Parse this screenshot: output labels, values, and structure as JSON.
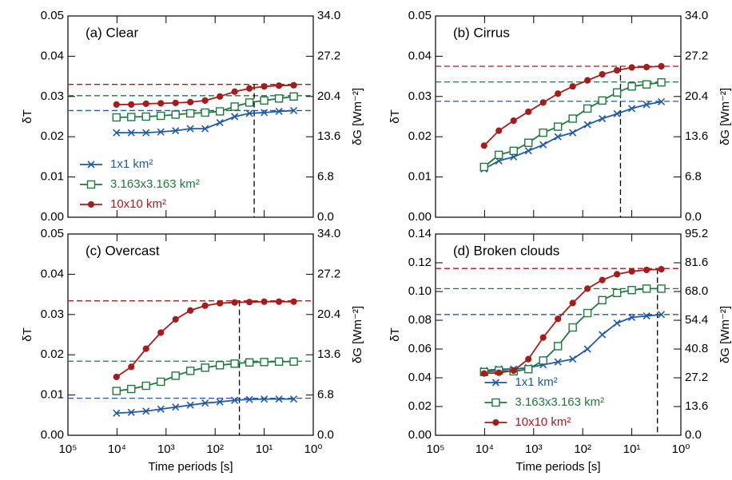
{
  "chart_data": [
    {
      "type": "line",
      "title": "(a) Clear",
      "ylabel": "δT",
      "y2label": "δG [Wm⁻²]",
      "xlog": true,
      "xlim": [
        100000,
        1
      ],
      "xticks": [
        100000,
        10000,
        1000,
        100,
        10,
        1
      ],
      "ylim": [
        0,
        0.05
      ],
      "yticks": [
        {
          "value": 0,
          "label": "0.00"
        },
        {
          "value": 0.01,
          "label": "0.01"
        },
        {
          "value": 0.02,
          "label": "0.02"
        },
        {
          "value": 0.03,
          "label": "0.03"
        },
        {
          "value": 0.04,
          "label": "0.04"
        },
        {
          "value": 0.05,
          "label": "0.05"
        }
      ],
      "y2lim": [
        0,
        34
      ],
      "y2ticks": [
        {
          "value": 0,
          "label": "0.0"
        },
        {
          "value": 6.8,
          "label": "6.8"
        },
        {
          "value": 13.6,
          "label": "13.6"
        },
        {
          "value": 20.4,
          "label": "20.4"
        },
        {
          "value": 27.2,
          "label": "27.2"
        },
        {
          "value": 34,
          "label": "34.0"
        }
      ],
      "x": [
        10240,
        5120,
        2560,
        1280,
        640,
        320,
        160,
        80,
        40,
        20,
        10,
        5,
        2.5
      ],
      "vline": 16,
      "legend": "lower left",
      "series": [
        {
          "name": "1x1 km²",
          "color": "#1f5aa6",
          "marker": "x",
          "asymptote": 0.0265,
          "values": [
            0.021,
            0.021,
            0.021,
            0.0212,
            0.0215,
            0.022,
            0.022,
            0.0235,
            0.025,
            0.0258,
            0.026,
            0.0263,
            0.0265
          ]
        },
        {
          "name": "3.163x3.163 km²",
          "color": "#1e7a3c",
          "marker": "square",
          "asymptote": 0.0302,
          "values": [
            0.0248,
            0.0249,
            0.025,
            0.0252,
            0.0255,
            0.0258,
            0.026,
            0.0263,
            0.0275,
            0.0285,
            0.029,
            0.0295,
            0.03
          ]
        },
        {
          "name": "10x10 km²",
          "color": "#a51c1c",
          "marker": "circle",
          "asymptote": 0.033,
          "values": [
            0.028,
            0.028,
            0.0282,
            0.0283,
            0.0284,
            0.0286,
            0.029,
            0.03,
            0.0312,
            0.032,
            0.0325,
            0.0327,
            0.0328
          ]
        }
      ]
    },
    {
      "type": "line",
      "title": "(b) Cirrus",
      "ylabel": "δT",
      "y2label": "δG [Wm⁻²]",
      "xlog": true,
      "xlim": [
        100000,
        1
      ],
      "xticks": [
        100000,
        10000,
        1000,
        100,
        10,
        1
      ],
      "ylim": [
        0,
        0.05
      ],
      "yticks": [
        {
          "value": 0,
          "label": "0.00"
        },
        {
          "value": 0.01,
          "label": "0.01"
        },
        {
          "value": 0.02,
          "label": "0.02"
        },
        {
          "value": 0.03,
          "label": "0.03"
        },
        {
          "value": 0.04,
          "label": "0.04"
        },
        {
          "value": 0.05,
          "label": "0.05"
        }
      ],
      "y2lim": [
        0,
        34
      ],
      "y2ticks": [
        {
          "value": 0,
          "label": "0.0"
        },
        {
          "value": 6.8,
          "label": "6.8"
        },
        {
          "value": 13.6,
          "label": "13.6"
        },
        {
          "value": 20.4,
          "label": "20.4"
        },
        {
          "value": 27.2,
          "label": "27.2"
        },
        {
          "value": 34,
          "label": "34.0"
        }
      ],
      "x": [
        10240,
        5120,
        2560,
        1280,
        640,
        320,
        160,
        80,
        40,
        20,
        10,
        5,
        2.5
      ],
      "vline": 17,
      "series": [
        {
          "color": "#1f5aa6",
          "marker": "x",
          "asymptote": 0.0288,
          "values": [
            0.012,
            0.014,
            0.015,
            0.0165,
            0.018,
            0.02,
            0.021,
            0.023,
            0.0245,
            0.0257,
            0.027,
            0.028,
            0.0287
          ]
        },
        {
          "color": "#1e7a3c",
          "marker": "square",
          "asymptote": 0.0336,
          "values": [
            0.0125,
            0.0155,
            0.0165,
            0.0185,
            0.021,
            0.0225,
            0.0245,
            0.027,
            0.029,
            0.031,
            0.0325,
            0.033,
            0.0335
          ]
        },
        {
          "color": "#a51c1c",
          "marker": "circle",
          "asymptote": 0.0375,
          "values": [
            0.0178,
            0.0215,
            0.024,
            0.0262,
            0.0285,
            0.0307,
            0.0325,
            0.034,
            0.0355,
            0.0365,
            0.0372,
            0.0373,
            0.0375
          ]
        }
      ]
    },
    {
      "type": "line",
      "title": "(c) Overcast",
      "ylabel": "δT",
      "y2label": "δG [Wm⁻²]",
      "xlabel": "Time periods [s]",
      "xlog": true,
      "xlim": [
        100000,
        1
      ],
      "xticks": [
        {
          "value": 100000,
          "label": "10⁵"
        },
        {
          "value": 10000,
          "label": "10⁴"
        },
        {
          "value": 1000,
          "label": "10³"
        },
        {
          "value": 100,
          "label": "10²"
        },
        {
          "value": 10,
          "label": "10¹"
        },
        {
          "value": 1,
          "label": "10⁰"
        }
      ],
      "ylim": [
        0,
        0.05
      ],
      "yticks": [
        {
          "value": 0,
          "label": "0.00"
        },
        {
          "value": 0.01,
          "label": "0.01"
        },
        {
          "value": 0.02,
          "label": "0.02"
        },
        {
          "value": 0.03,
          "label": "0.03"
        },
        {
          "value": 0.04,
          "label": "0.04"
        },
        {
          "value": 0.05,
          "label": "0.05"
        }
      ],
      "y2lim": [
        0,
        34
      ],
      "y2ticks": [
        {
          "value": 0,
          "label": "0.0"
        },
        {
          "value": 6.8,
          "label": "6.8"
        },
        {
          "value": 13.6,
          "label": "13.6"
        },
        {
          "value": 20.4,
          "label": "20.4"
        },
        {
          "value": 27.2,
          "label": "27.2"
        },
        {
          "value": 34,
          "label": "34.0"
        }
      ],
      "x": [
        10240,
        5120,
        2560,
        1280,
        640,
        320,
        160,
        80,
        40,
        20,
        10,
        5,
        2.5
      ],
      "vline": 32,
      "series": [
        {
          "color": "#1f5aa6",
          "marker": "x",
          "asymptote": 0.0092,
          "values": [
            0.0055,
            0.0057,
            0.006,
            0.0065,
            0.007,
            0.0075,
            0.008,
            0.0083,
            0.0087,
            0.0089,
            0.009,
            0.009,
            0.009
          ]
        },
        {
          "color": "#1e7a3c",
          "marker": "square",
          "asymptote": 0.0184,
          "values": [
            0.011,
            0.0115,
            0.0123,
            0.0133,
            0.0148,
            0.016,
            0.0168,
            0.0174,
            0.0178,
            0.0181,
            0.0182,
            0.0183,
            0.0183
          ]
        },
        {
          "color": "#a51c1c",
          "marker": "circle",
          "asymptote": 0.0334,
          "values": [
            0.0145,
            0.017,
            0.0215,
            0.0255,
            0.0288,
            0.031,
            0.0322,
            0.0328,
            0.033,
            0.0331,
            0.0332,
            0.0332,
            0.0332
          ]
        }
      ]
    },
    {
      "type": "line",
      "title": "(d) Broken clouds",
      "ylabel": "δT",
      "y2label": "δG [Wm⁻²]",
      "xlabel": "Time periods [s]",
      "xlog": true,
      "xlim": [
        100000,
        1
      ],
      "xticks": [
        {
          "value": 100000,
          "label": "10⁵"
        },
        {
          "value": 10000,
          "label": "10⁴"
        },
        {
          "value": 1000,
          "label": "10³"
        },
        {
          "value": 100,
          "label": "10²"
        },
        {
          "value": 10,
          "label": "10¹"
        },
        {
          "value": 1,
          "label": "10⁰"
        }
      ],
      "ylim": [
        0,
        0.14
      ],
      "yticks": [
        {
          "value": 0,
          "label": "0.00"
        },
        {
          "value": 0.02,
          "label": "0.02"
        },
        {
          "value": 0.04,
          "label": "0.04"
        },
        {
          "value": 0.06,
          "label": "0.06"
        },
        {
          "value": 0.08,
          "label": "0.08"
        },
        {
          "value": 0.1,
          "label": "0.10"
        },
        {
          "value": 0.12,
          "label": "0.12"
        },
        {
          "value": 0.14,
          "label": "0.14"
        }
      ],
      "y2lim": [
        0,
        95.2
      ],
      "y2ticks": [
        {
          "value": 0,
          "label": "0.0"
        },
        {
          "value": 13.6,
          "label": "13.6"
        },
        {
          "value": 27.2,
          "label": "27.2"
        },
        {
          "value": 40.8,
          "label": "40.8"
        },
        {
          "value": 54.4,
          "label": "54.4"
        },
        {
          "value": 68,
          "label": "68.0"
        },
        {
          "value": 81.6,
          "label": "81.6"
        },
        {
          "value": 95.2,
          "label": "95.2"
        }
      ],
      "x": [
        10240,
        5120,
        2560,
        1280,
        640,
        320,
        160,
        80,
        40,
        20,
        10,
        5,
        2.5
      ],
      "vline": 3,
      "legend": "lower center",
      "series": [
        {
          "name": "1x1 km²",
          "color": "#1f5aa6",
          "marker": "x",
          "asymptote": 0.084,
          "values": [
            0.045,
            0.046,
            0.046,
            0.047,
            0.049,
            0.051,
            0.053,
            0.06,
            0.07,
            0.078,
            0.082,
            0.083,
            0.084
          ]
        },
        {
          "name": "3.163x3.163 km²",
          "color": "#1e7a3c",
          "marker": "square",
          "asymptote": 0.102,
          "values": [
            0.044,
            0.045,
            0.0445,
            0.046,
            0.052,
            0.062,
            0.075,
            0.085,
            0.094,
            0.099,
            0.101,
            0.102,
            0.102
          ]
        },
        {
          "name": "10x10 km²",
          "color": "#a51c1c",
          "marker": "circle",
          "asymptote": 0.116,
          "values": [
            0.043,
            0.0435,
            0.045,
            0.053,
            0.068,
            0.081,
            0.092,
            0.102,
            0.108,
            0.112,
            0.114,
            0.115,
            0.1155
          ]
        }
      ]
    }
  ]
}
